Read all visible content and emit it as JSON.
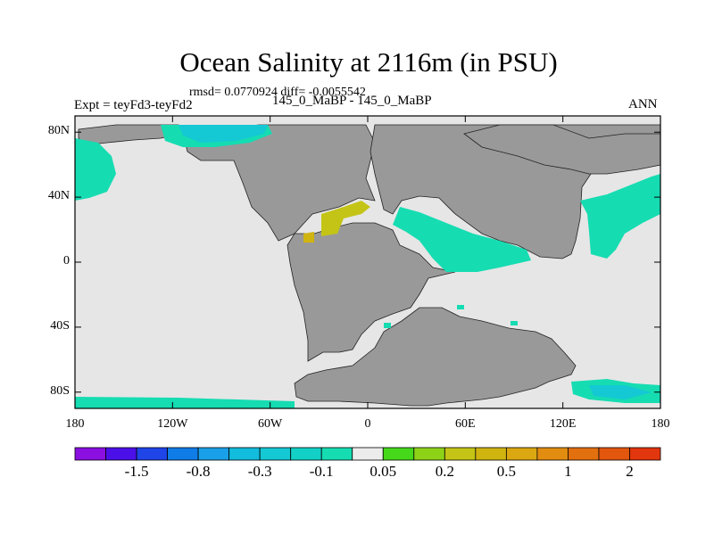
{
  "title": "Ocean Salinity at 2116m (in PSU)",
  "stats": "rmsd= 0.0770924 diff= -0.0055542",
  "left_label": "Expt = teyFd3-teyFd2",
  "center_label": "145_0_MaBP - 145_0_MaBP",
  "right_label": "ANN",
  "axes": {
    "y_ticks": [
      "80N",
      "40N",
      "0",
      "40S",
      "80S"
    ],
    "y_values": [
      80,
      40,
      0,
      -40,
      -80
    ],
    "x_ticks": [
      "180",
      "120W",
      "60W",
      "0",
      "60E",
      "120E",
      "180"
    ],
    "x_values": [
      -180,
      -120,
      -60,
      0,
      60,
      120,
      180
    ],
    "lon_range": [
      -180,
      180
    ],
    "lat_range": [
      -90,
      90
    ]
  },
  "colors": {
    "land": "#999999",
    "near_zero": "#e6e6e6",
    "frame": "#000000"
  },
  "colorbar": {
    "colors": [
      "#8a0fe0",
      "#4b0fe8",
      "#1f44e8",
      "#0f7ce8",
      "#1aa0e8",
      "#12bcdc",
      "#14c8d4",
      "#12d0c6",
      "#16dcb2",
      "#ececec",
      "#46d81a",
      "#8ed218",
      "#c4c416",
      "#d0b410",
      "#dca812",
      "#e28c10",
      "#e2700e",
      "#e2560e",
      "#e2360e"
    ],
    "labels": [
      "-1.5",
      "-0.8",
      "-0.3",
      "-0.1",
      "0.05",
      "0.2",
      "0.5",
      "1",
      "2"
    ]
  }
}
